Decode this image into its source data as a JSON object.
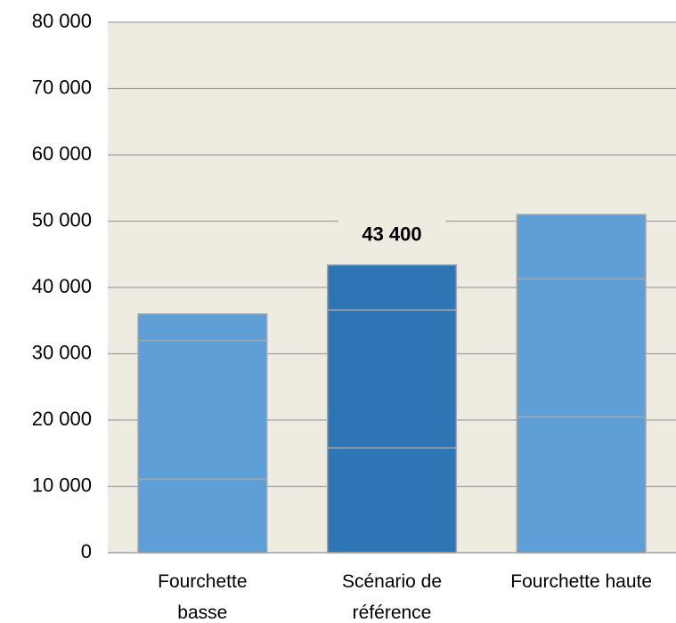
{
  "chart_data": {
    "type": "stacked_bar",
    "categories": [
      "Fourchette basse",
      "Scénario de référence",
      "Fourchette haute"
    ],
    "colors": [
      "#5f9fd8",
      "#2e75b6",
      "#5f9fd8"
    ],
    "series": [
      {
        "values": [
          11100,
          15800,
          20500
        ]
      },
      {
        "values": [
          20900,
          20800,
          20800
        ]
      },
      {
        "values": [
          4000,
          6800,
          9700
        ]
      }
    ],
    "annotations": [
      {
        "text": "43 400",
        "category": 1
      }
    ],
    "ylim": [
      0,
      80000
    ],
    "yticks": [
      {
        "value": 0,
        "label": "0"
      },
      {
        "value": 10000,
        "label": "10 000"
      },
      {
        "value": 20000,
        "label": "20 000"
      },
      {
        "value": 30000,
        "label": "30 000"
      },
      {
        "value": 40000,
        "label": "40 000"
      },
      {
        "value": 50000,
        "label": "50 000"
      },
      {
        "value": 60000,
        "label": "60 000"
      },
      {
        "value": 70000,
        "label": "70 000"
      },
      {
        "value": 80000,
        "label": "80 000"
      }
    ],
    "grid": true
  }
}
